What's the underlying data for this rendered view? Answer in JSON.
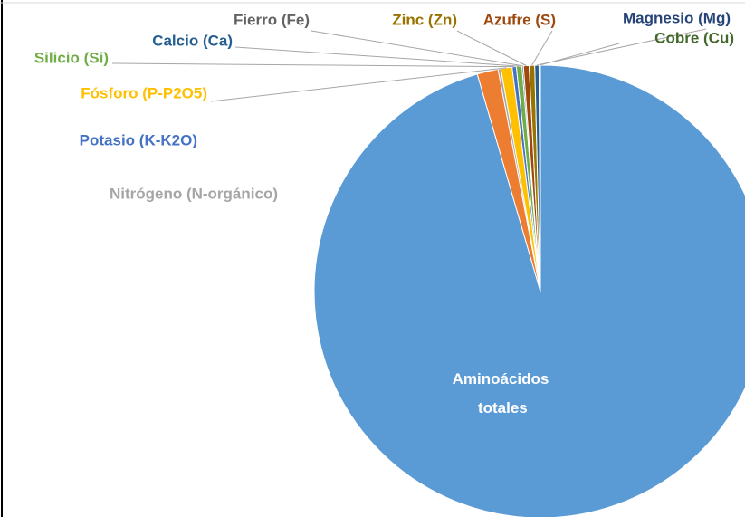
{
  "chart_data": {
    "type": "pie",
    "categories": [
      "Aminoácidos totales",
      "Nitrógeno (N-orgánico)",
      "Potasio (K-K2O)",
      "Fósforo (P-P2O5)",
      "Silicio (Si)",
      "Calcio (Ca)",
      "Fierro (Fe)",
      "Zinc (Zn)",
      "Azufre (S)",
      "Magnesio (Mg)",
      "Cobre (Cu)"
    ],
    "values": [
      95.5,
      1.5,
      0.2,
      0.8,
      0.3,
      0.4,
      0.1,
      0.4,
      0.4,
      0.3,
      0.1
    ],
    "colors": [
      "#5b9bd5",
      "#ed7d31",
      "#a5a5a5",
      "#ffc000",
      "#4472c4",
      "#70ad47",
      "#264478",
      "#9e480e",
      "#997300",
      "#255e91",
      "#43682b"
    ],
    "label_colors": [
      "#ffffff",
      "#a5a5a5",
      "#4472c4",
      "#ffc000",
      "#70ad47",
      "#255e91",
      "#636363",
      "#997300",
      "#9e480e",
      "#264478",
      "#43682b"
    ]
  }
}
